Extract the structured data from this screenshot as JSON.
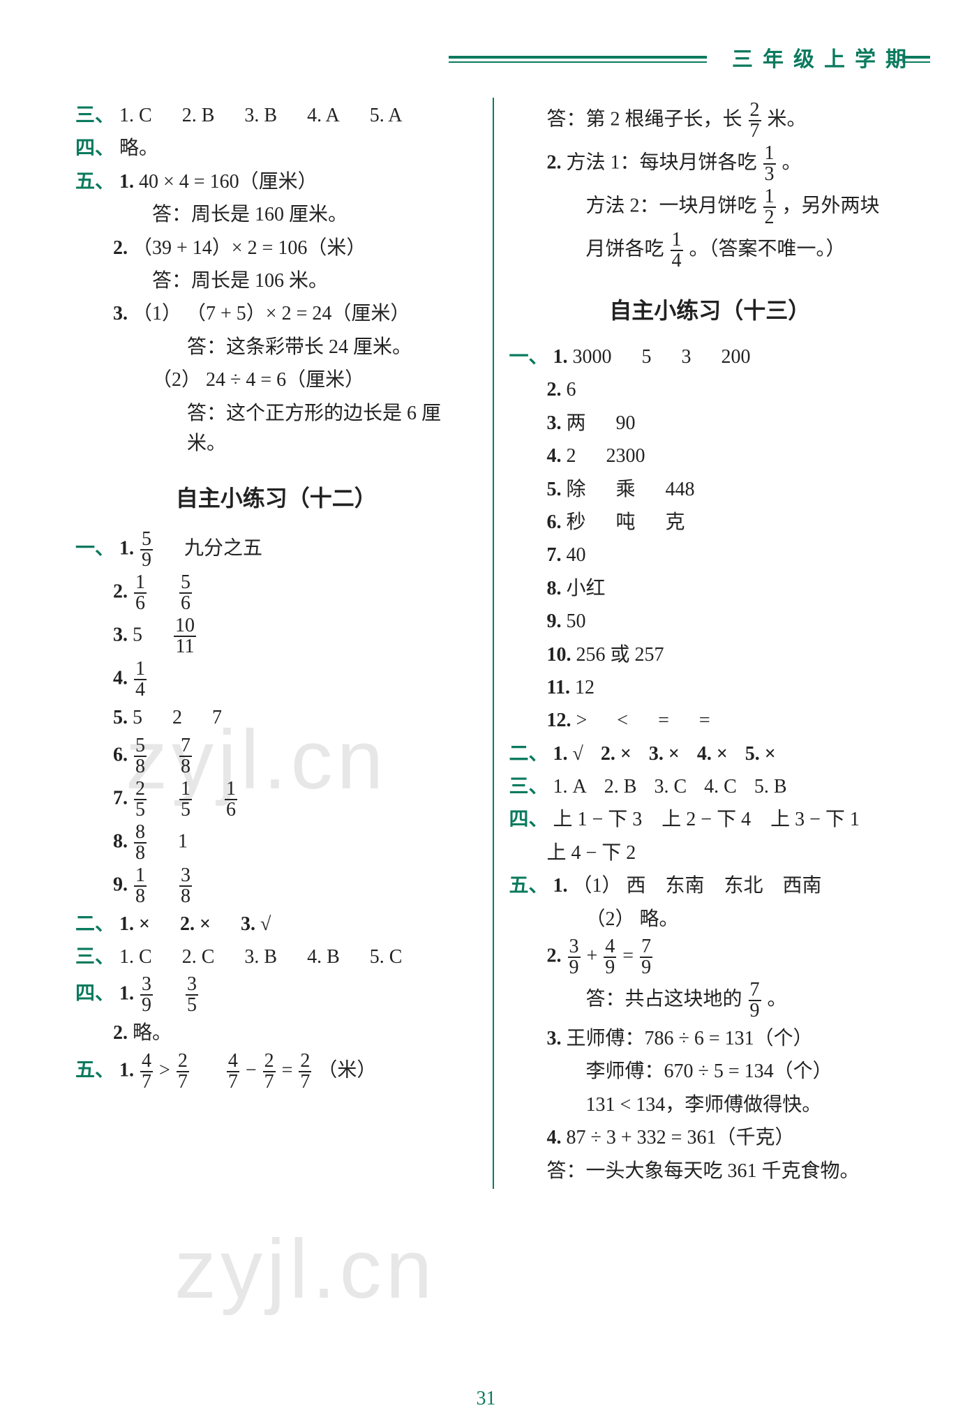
{
  "header": "三年级上学期",
  "pageNum": "31",
  "watermark": "zyjl.cn",
  "left": {
    "san": {
      "label": "三、",
      "items": [
        "1. C",
        "2. B",
        "3. B",
        "4. A",
        "5. A"
      ]
    },
    "si": {
      "label": "四、",
      "text": "略。"
    },
    "wu": {
      "label": "五、",
      "q1": {
        "num": "1.",
        "eq": "40 × 4 = 160（厘米）",
        "ans": "答：周长是 160 厘米。"
      },
      "q2": {
        "num": "2.",
        "eq": "（39 + 14）× 2 = 106（米）",
        "ans": "答：周长是 106 米。"
      },
      "q3": {
        "num": "3.",
        "p1": {
          "tag": "（1）",
          "eq": "（7 + 5）× 2 = 24（厘米）",
          "ans": "答：这条彩带长 24 厘米。"
        },
        "p2": {
          "tag": "（2）",
          "eq": "24 ÷ 4 = 6（厘米）",
          "ans": "答：这个正方形的边长是 6 厘米。"
        }
      }
    },
    "title12": "自主小练习（十二）",
    "s12": {
      "yi": {
        "label": "一、",
        "q1": {
          "num": "1.",
          "f": [
            "5",
            "9"
          ],
          "txt": "九分之五"
        },
        "q2": {
          "num": "2.",
          "f1": [
            "1",
            "6"
          ],
          "f2": [
            "5",
            "6"
          ]
        },
        "q3": {
          "num": "3.",
          "v": "5",
          "f": [
            "10",
            "11"
          ]
        },
        "q4": {
          "num": "4.",
          "f": [
            "1",
            "4"
          ]
        },
        "q5": {
          "num": "5.",
          "vals": [
            "5",
            "2",
            "7"
          ]
        },
        "q6": {
          "num": "6.",
          "f1": [
            "5",
            "8"
          ],
          "f2": [
            "7",
            "8"
          ]
        },
        "q7": {
          "num": "7.",
          "f1": [
            "2",
            "5"
          ],
          "f2": [
            "1",
            "5"
          ],
          "f3": [
            "1",
            "6"
          ]
        },
        "q8": {
          "num": "8.",
          "f": [
            "8",
            "8"
          ],
          "v": "1"
        },
        "q9": {
          "num": "9.",
          "f1": [
            "1",
            "8"
          ],
          "f2": [
            "3",
            "8"
          ]
        }
      },
      "er": {
        "label": "二、",
        "items": [
          "1. ×",
          "2. ×",
          "3. √"
        ]
      },
      "san": {
        "label": "三、",
        "items": [
          "1. C",
          "2. C",
          "3. B",
          "4. B",
          "5. C"
        ]
      },
      "si": {
        "label": "四、",
        "q1": {
          "num": "1.",
          "f1": [
            "3",
            "9"
          ],
          "f2": [
            "3",
            "5"
          ]
        },
        "q2": {
          "num": "2.",
          "txt": "略。"
        }
      },
      "wu": {
        "label": "五、",
        "q1": {
          "num": "1.",
          "f1": [
            "4",
            "7"
          ],
          "f2": [
            "2",
            "7"
          ],
          "f3": [
            "4",
            "7"
          ],
          "f4": [
            "2",
            "7"
          ],
          "f5": [
            "2",
            "7"
          ],
          "unit": "（米）"
        }
      }
    }
  },
  "right": {
    "top": {
      "ans": {
        "pre": "答：第 2 根绳子长，长",
        "f": [
          "2",
          "7"
        ],
        "post": "米。"
      },
      "q2": {
        "num": "2.",
        "m1": {
          "pre": "方法 1：每块月饼各吃",
          "f": [
            "1",
            "3"
          ],
          "post": "。"
        },
        "m2a": {
          "pre": "方法 2：一块月饼吃",
          "f": [
            "1",
            "2"
          ],
          "post": "，另外两块"
        },
        "m2b": {
          "pre": "月饼各吃",
          "f": [
            "1",
            "4"
          ],
          "post": "。（答案不唯一。）"
        }
      }
    },
    "title13": "自主小练习（十三）",
    "s13": {
      "yi": {
        "label": "一、",
        "q1": {
          "num": "1.",
          "vals": [
            "3000",
            "5",
            "3",
            "200"
          ]
        },
        "q2": {
          "num": "2.",
          "v": "6"
        },
        "q3": {
          "num": "3.",
          "vals": [
            "两",
            "90"
          ]
        },
        "q4": {
          "num": "4.",
          "vals": [
            "2",
            "2300"
          ]
        },
        "q5": {
          "num": "5.",
          "vals": [
            "除",
            "乘",
            "448"
          ]
        },
        "q6": {
          "num": "6.",
          "vals": [
            "秒",
            "吨",
            "克"
          ]
        },
        "q7": {
          "num": "7.",
          "v": "40"
        },
        "q8": {
          "num": "8.",
          "v": "小红"
        },
        "q9": {
          "num": "9.",
          "v": "50"
        },
        "q10": {
          "num": "10.",
          "v": "256 或 257"
        },
        "q11": {
          "num": "11.",
          "v": "12"
        },
        "q12": {
          "num": "12.",
          "vals": [
            ">",
            "<",
            "=",
            "="
          ]
        }
      },
      "er": {
        "label": "二、",
        "items": [
          "1. √",
          "2. ×",
          "3. ×",
          "4. ×",
          "5. ×"
        ]
      },
      "san": {
        "label": "三、",
        "items": [
          "1. A",
          "2. B",
          "3. C",
          "4. C",
          "5. B"
        ]
      },
      "si": {
        "label": "四、",
        "l1": "上 1 − 下 3　上 2 − 下 4　上 3 − 下 1",
        "l2": "上 4 − 下 2"
      },
      "wu": {
        "label": "五、",
        "q1": {
          "num": "1.",
          "p1": {
            "tag": "（1）",
            "txt": "西　东南　东北　西南"
          },
          "p2": {
            "tag": "（2）",
            "txt": "略。"
          }
        },
        "q2": {
          "num": "2.",
          "f1": [
            "3",
            "9"
          ],
          "f2": [
            "4",
            "9"
          ],
          "f3": [
            "7",
            "9"
          ],
          "ansPre": "答：共占这块地的",
          "ansF": [
            "7",
            "9"
          ],
          "ansPost": "。"
        },
        "q3": {
          "num": "3.",
          "l1": "王师傅：786 ÷ 6 = 131（个）",
          "l2": "李师傅：670 ÷ 5 = 134（个）",
          "l3": "131 < 134，李师傅做得快。"
        },
        "q4": {
          "num": "4.",
          "eq": "87 ÷ 3 + 332 = 361（千克）",
          "ans": "答：一头大象每天吃 361 千克食物。"
        }
      }
    }
  }
}
